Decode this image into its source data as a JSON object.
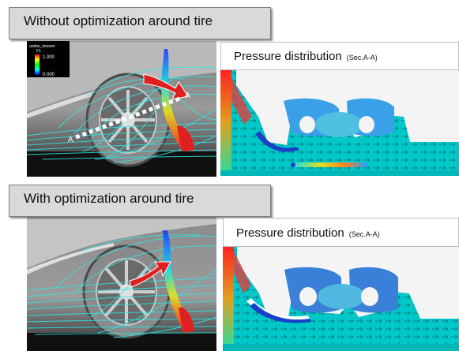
{
  "sections": [
    {
      "label": "Without optimization around  tire",
      "pressure_title": "Pressure distribution",
      "pressure_section": "(Sec.A-A)",
      "colorbar": {
        "name": "undou_kesson",
        "subname": "F1",
        "max": "1.000",
        "min": "0.000"
      },
      "section_markers": [
        "A",
        "A"
      ]
    },
    {
      "label": "With optimization around  tire",
      "pressure_title": "Pressure distribution",
      "pressure_section": "(Sec.A-A)"
    }
  ],
  "colors": {
    "streamline": "#2ee6e6",
    "arrow": "#e02020",
    "label_bg": "#d9d9d9",
    "plot_bg": "#00d0d0"
  }
}
